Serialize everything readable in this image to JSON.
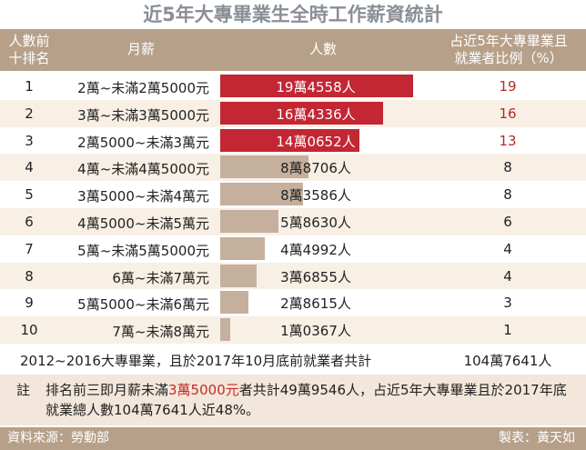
{
  "title": "近5年大專畢業生全時工作薪資統計",
  "header": {
    "rank_line1": "人數前",
    "rank_line2": "十排名",
    "salary": "月薪",
    "count": "人數",
    "pct_line1": "占近5年大專畢業且",
    "pct_line2": "就業者比例（%）"
  },
  "chart_data": {
    "type": "bar",
    "categories": [
      "2萬~未滿2萬5000元",
      "3萬~未滿3萬5000元",
      "2萬5000~未滿3萬元",
      "4萬~未滿4萬5000元",
      "3萬5000~未滿4萬元",
      "4萬5000~未滿5萬元",
      "5萬~未滿5萬5000元",
      "6萬~未滿7萬元",
      "5萬5000~未滿6萬元",
      "7萬~未滿8萬元"
    ],
    "values": [
      194558,
      164336,
      140652,
      88706,
      83586,
      58630,
      44992,
      36855,
      28615,
      10367
    ]
  },
  "rows": [
    {
      "rank": "1",
      "salary": "2萬~未滿2萬5000元",
      "count": "19萬4558人",
      "pct": "19"
    },
    {
      "rank": "2",
      "salary": "3萬~未滿3萬5000元",
      "count": "16萬4336人",
      "pct": "16"
    },
    {
      "rank": "3",
      "salary": "2萬5000~未滿3萬元",
      "count": "14萬0652人",
      "pct": "13"
    },
    {
      "rank": "4",
      "salary": "4萬~未滿4萬5000元",
      "count": "8萬8706人",
      "pct": "8"
    },
    {
      "rank": "5",
      "salary": "3萬5000~未滿4萬元",
      "count": "8萬3586人",
      "pct": "8"
    },
    {
      "rank": "6",
      "salary": "4萬5000~未滿5萬元",
      "count": "5萬8630人",
      "pct": "6"
    },
    {
      "rank": "7",
      "salary": "5萬~未滿5萬5000元",
      "count": "4萬4992人",
      "pct": "4"
    },
    {
      "rank": "8",
      "salary": "6萬~未滿7萬元",
      "count": "3萬6855人",
      "pct": "4"
    },
    {
      "rank": "9",
      "salary": "5萬5000~未滿6萬元",
      "count": "2萬8615人",
      "pct": "3"
    },
    {
      "rank": "10",
      "salary": "7萬~未滿8萬元",
      "count": "1萬0367人",
      "pct": "1"
    }
  ],
  "total": {
    "label": "2012~2016大專畢業，且於2017年10月底前就業者共計",
    "value": "104萬7641人"
  },
  "note": {
    "label": "註",
    "text_before": "排名前三即月薪未滿",
    "highlight": "3萬5000元",
    "text_after": "者共計49萬9546人，占近5年大專畢業且於2017年底就業總人數104萬7641人近48%。"
  },
  "footer": {
    "source": "資料來源：勞動部",
    "author": "製表：黃天如"
  },
  "colors": {
    "header_bg": "#b6a089",
    "top_bar": "#c22733",
    "rest_bar": "#c4b09c",
    "alt_row": "#f8efe5",
    "note_bg": "#f2e7da"
  }
}
